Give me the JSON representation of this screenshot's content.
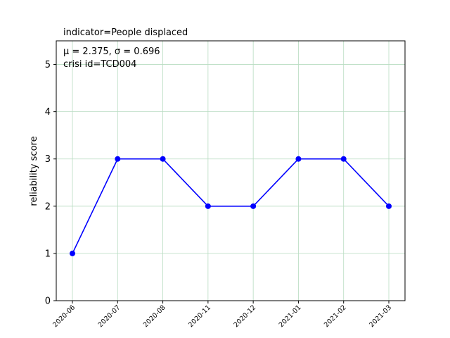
{
  "chart_data": {
    "type": "line",
    "title": "indicator=People displaced",
    "annotation_lines": [
      "μ = 2.375,  σ = 0.696",
      "crisi id=TCD004"
    ],
    "xlabel": "",
    "ylabel": "reliability score",
    "categories": [
      "2020-06",
      "2020-07",
      "2020-08",
      "2020-11",
      "2020-12",
      "2021-01",
      "2021-02",
      "2021-03"
    ],
    "series": [
      {
        "values": [
          1,
          3,
          3,
          2,
          2,
          3,
          3,
          2
        ],
        "color": "#0000ff",
        "marker": "circle"
      }
    ],
    "ylim": [
      0,
      5.5
    ],
    "yticks": [
      0,
      1,
      2,
      3,
      4,
      5
    ],
    "grid": true,
    "grid_color": "#b7dcc0"
  }
}
